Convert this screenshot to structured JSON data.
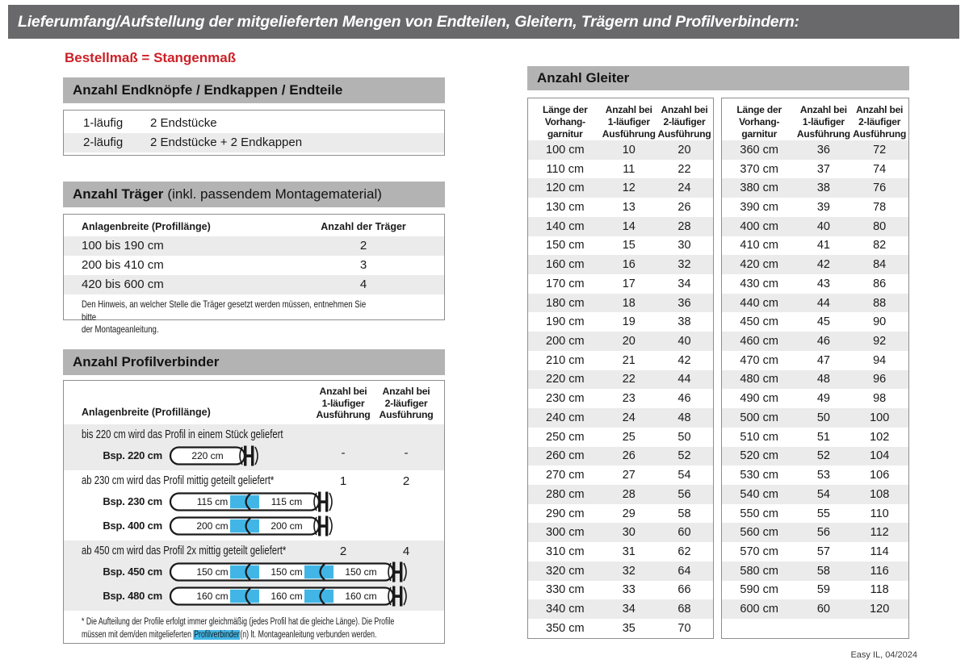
{
  "title": "Lieferumfang/Aufstellung der mitgelieferten Mengen von Endteilen, Gleitern, Trägern und Profilverbindern:",
  "order_note": "Bestellmaß = Stangenmaß",
  "footer": "Easy IL, 04/2024",
  "colors": {
    "title_bar_gray": "#69696b",
    "section_bar_gray": "#b3b3b3",
    "zebra_gray": "#ebebeb",
    "accent_red": "#cc2027",
    "connector_blue": "#41b6e6",
    "rod_outline": "#1a1a1a"
  },
  "endteile": {
    "header": "Anzahl Endknöpfe / Endkappen / Endteile",
    "rows": [
      {
        "label": "1-läufig",
        "value": "2 Endstücke"
      },
      {
        "label": "2-läufig",
        "value": "2 Endstücke + 2 Endkappen"
      }
    ]
  },
  "traeger": {
    "header_bold": "Anzahl Träger",
    "header_rest": "(inkl. passendem Montagematerial)",
    "col1": "Anlagenbreite (Profillänge)",
    "col2": "Anzahl der Träger",
    "rows": [
      {
        "range": "100 bis 190 cm",
        "count": 2
      },
      {
        "range": "200 bis 410 cm",
        "count": 3
      },
      {
        "range": "420 bis 600 cm",
        "count": 4
      }
    ],
    "note": "Den Hinweis, an welcher Stelle die Träger gesetzt werden müssen, entnehmen Sie bitte\nder Montageanleitung."
  },
  "profilverbinder": {
    "header": "Anzahl Profilverbinder",
    "col1": "Anlagenbreite (Profillänge)",
    "col2": "Anzahl bei\n1-läufiger\nAusführung",
    "col3": "Anzahl bei\n2-läufiger\nAusführung",
    "rows": [
      {
        "text": "bis 220 cm wird das Profil in einem Stück geliefert",
        "count_1": "-",
        "count_2": "-",
        "examples": [
          {
            "label": "Bsp. 220 cm",
            "segments": [
              "220 cm"
            ]
          }
        ]
      },
      {
        "text": "ab 230 cm wird das Profil mittig geteilt geliefert*",
        "count_1": "1",
        "count_2": "2",
        "examples": [
          {
            "label": "Bsp. 230 cm",
            "segments": [
              "115 cm",
              "115 cm"
            ]
          },
          {
            "label": "Bsp. 400 cm",
            "segments": [
              "200 cm",
              "200 cm"
            ]
          }
        ]
      },
      {
        "text": "ab 450 cm wird das Profil 2x mittig geteilt geliefert*",
        "count_1": "2",
        "count_2": "4",
        "examples": [
          {
            "label": "Bsp. 450 cm",
            "segments": [
              "150 cm",
              "150 cm",
              "150 cm"
            ]
          },
          {
            "label": "Bsp. 480 cm",
            "segments": [
              "160 cm",
              "160 cm",
              "160 cm"
            ]
          }
        ]
      }
    ],
    "footnote": {
      "line1": "* Die Aufteilung der Profile erfolgt immer gleichmäßig (jedes Profil hat die gleiche Länge). Die Profile",
      "line2_before": "müssen mit dem/den mitgelieferten ",
      "line2_highlight": "Profilverbinder",
      "line2_after": "(n) lt. Montageanleitung verbunden werden."
    }
  },
  "gleiter": {
    "header": "Anzahl Gleiter",
    "col_headers": [
      "Länge der\nVorhang-\ngarnitur",
      "Anzahl bei\n1-läufiger\nAusführung",
      "Anzahl bei\n2-läufiger\nAusführung"
    ],
    "tables": [
      {
        "rows": [
          [
            "100 cm",
            10,
            20
          ],
          [
            "110 cm",
            11,
            22
          ],
          [
            "120 cm",
            12,
            24
          ],
          [
            "130 cm",
            13,
            26
          ],
          [
            "140 cm",
            14,
            28
          ],
          [
            "150 cm",
            15,
            30
          ],
          [
            "160 cm",
            16,
            32
          ],
          [
            "170 cm",
            17,
            34
          ],
          [
            "180 cm",
            18,
            36
          ],
          [
            "190 cm",
            19,
            38
          ],
          [
            "200 cm",
            20,
            40
          ],
          [
            "210 cm",
            21,
            42
          ],
          [
            "220 cm",
            22,
            44
          ],
          [
            "230 cm",
            23,
            46
          ],
          [
            "240 cm",
            24,
            48
          ],
          [
            "250 cm",
            25,
            50
          ],
          [
            "260 cm",
            26,
            52
          ],
          [
            "270 cm",
            27,
            54
          ],
          [
            "280 cm",
            28,
            56
          ],
          [
            "290 cm",
            29,
            58
          ],
          [
            "300 cm",
            30,
            60
          ],
          [
            "310 cm",
            31,
            62
          ],
          [
            "320 cm",
            32,
            64
          ],
          [
            "330 cm",
            33,
            66
          ],
          [
            "340 cm",
            34,
            68
          ],
          [
            "350 cm",
            35,
            70
          ]
        ]
      },
      {
        "rows": [
          [
            "360 cm",
            36,
            72
          ],
          [
            "370 cm",
            37,
            74
          ],
          [
            "380 cm",
            38,
            76
          ],
          [
            "390 cm",
            39,
            78
          ],
          [
            "400 cm",
            40,
            80
          ],
          [
            "410 cm",
            41,
            82
          ],
          [
            "420 cm",
            42,
            84
          ],
          [
            "430 cm",
            43,
            86
          ],
          [
            "440 cm",
            44,
            88
          ],
          [
            "450 cm",
            45,
            90
          ],
          [
            "460 cm",
            46,
            92
          ],
          [
            "470 cm",
            47,
            94
          ],
          [
            "480 cm",
            48,
            96
          ],
          [
            "490 cm",
            49,
            98
          ],
          [
            "500 cm",
            50,
            100
          ],
          [
            "510 cm",
            51,
            102
          ],
          [
            "520 cm",
            52,
            104
          ],
          [
            "530 cm",
            53,
            106
          ],
          [
            "540 cm",
            54,
            108
          ],
          [
            "550 cm",
            55,
            110
          ],
          [
            "560 cm",
            56,
            112
          ],
          [
            "570 cm",
            57,
            114
          ],
          [
            "580 cm",
            58,
            116
          ],
          [
            "590 cm",
            59,
            118
          ],
          [
            "600 cm",
            60,
            120
          ]
        ]
      }
    ]
  }
}
